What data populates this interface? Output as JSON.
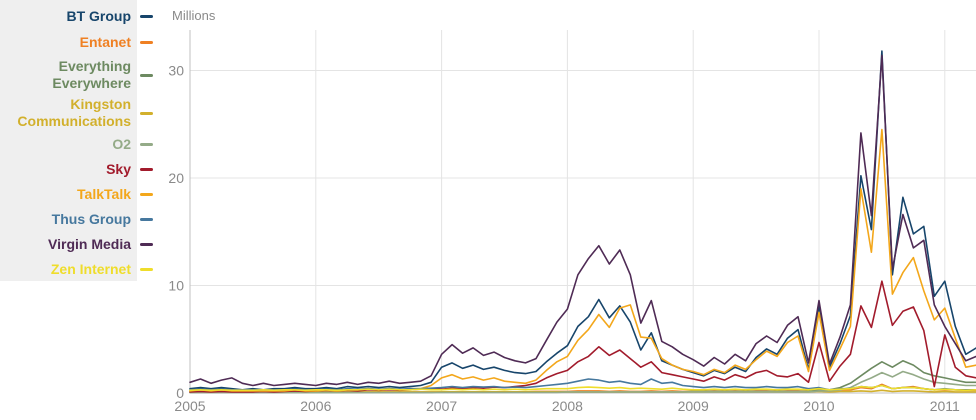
{
  "chart_data": {
    "type": "line",
    "title": "",
    "ylabel": "Millions",
    "xlabel": "",
    "x_unit": "year",
    "x_start": 2005,
    "x_step": 0.08333,
    "x_ticks": [
      2005,
      2006,
      2007,
      2008,
      2009,
      2010,
      2011
    ],
    "y_ticks": [
      0,
      10,
      20,
      30
    ],
    "xlim": [
      2005,
      2011.3
    ],
    "ylim": [
      0,
      33.7
    ],
    "grid": true,
    "legend_position": "left",
    "colors": {
      "grid": "#e4e4e4",
      "axis": "#c0c0c0",
      "tick_label": "#8a8a8a",
      "legend_bg": "#efefef",
      "background": "#ffffff"
    },
    "series": [
      {
        "name": "BT Group",
        "color": "#17456b",
        "values": [
          0.4,
          0.5,
          0.4,
          0.5,
          0.4,
          0.3,
          0.4,
          0.3,
          0.4,
          0.4,
          0.5,
          0.4,
          0.4,
          0.5,
          0.4,
          0.6,
          0.5,
          0.6,
          0.5,
          0.6,
          0.5,
          0.6,
          0.7,
          1.0,
          2.4,
          2.8,
          2.3,
          2.6,
          2.2,
          2.4,
          2.1,
          1.9,
          1.8,
          2.0,
          2.9,
          3.7,
          4.4,
          6.2,
          7.1,
          8.7,
          7.0,
          8.1,
          6.6,
          4.0,
          5.6,
          3.0,
          2.6,
          2.2,
          1.9,
          1.6,
          2.1,
          1.8,
          2.4,
          2.0,
          3.3,
          4.1,
          3.6,
          5.1,
          5.9,
          2.2,
          8.1,
          2.4,
          4.6,
          7.2,
          20.2,
          15.2,
          31.8,
          11.0,
          18.2,
          14.8,
          15.5,
          9.0,
          10.4,
          6.2,
          3.6,
          4.2
        ]
      },
      {
        "name": "Entanet",
        "color": "#ef8023",
        "values": [
          0.1,
          0.1,
          0.1,
          0.1,
          0.1,
          0.1,
          0.1,
          0.1,
          0.1,
          0.1,
          0.1,
          0.1,
          0.1,
          0.1,
          0.1,
          0.1,
          0.1,
          0.1,
          0.1,
          0.1,
          0.1,
          0.1,
          0.1,
          0.1,
          0.1,
          0.1,
          0.1,
          0.1,
          0.1,
          0.1,
          0.1,
          0.1,
          0.1,
          0.15,
          0.15,
          0.15,
          0.15,
          0.2,
          0.2,
          0.2,
          0.15,
          0.2,
          0.15,
          0.15,
          0.2,
          0.15,
          0.2,
          0.15,
          0.15,
          0.15,
          0.2,
          0.15,
          0.2,
          0.15,
          0.2,
          0.2,
          0.15,
          0.2,
          0.2,
          0.15,
          0.2,
          0.2,
          0.3,
          0.3,
          0.5,
          0.4,
          0.8,
          0.4,
          0.5,
          0.6,
          0.4,
          0.3,
          0.3,
          0.3,
          0.25,
          0.25
        ]
      },
      {
        "name": "Everything Everywhere",
        "color": "#6d8a61",
        "values": [
          0.05,
          0.05,
          0.05,
          0.05,
          0.05,
          0.05,
          0.05,
          0.05,
          0.05,
          0.05,
          0.05,
          0.05,
          0.05,
          0.05,
          0.05,
          0.05,
          0.05,
          0.05,
          0.05,
          0.05,
          0.05,
          0.05,
          0.05,
          0.05,
          0.1,
          0.1,
          0.1,
          0.1,
          0.1,
          0.1,
          0.1,
          0.1,
          0.1,
          0.1,
          0.1,
          0.1,
          0.1,
          0.1,
          0.1,
          0.1,
          0.1,
          0.1,
          0.1,
          0.1,
          0.1,
          0.1,
          0.1,
          0.1,
          0.15,
          0.15,
          0.15,
          0.15,
          0.15,
          0.15,
          0.15,
          0.15,
          0.15,
          0.15,
          0.15,
          0.15,
          0.3,
          0.3,
          0.5,
          0.9,
          1.6,
          2.3,
          2.9,
          2.4,
          3.0,
          2.6,
          1.9,
          1.6,
          1.4,
          1.2,
          1.0,
          1.0
        ]
      },
      {
        "name": "Kingston Communications",
        "color": "#d2b02c",
        "values": [
          0.1,
          0.1,
          0.1,
          0.1,
          0.1,
          0.1,
          0.1,
          0.1,
          0.1,
          0.1,
          0.1,
          0.1,
          0.1,
          0.1,
          0.1,
          0.1,
          0.1,
          0.1,
          0.1,
          0.1,
          0.1,
          0.1,
          0.1,
          0.1,
          0.1,
          0.1,
          0.1,
          0.1,
          0.1,
          0.1,
          0.1,
          0.1,
          0.1,
          0.1,
          0.1,
          0.1,
          0.1,
          0.1,
          0.1,
          0.1,
          0.1,
          0.1,
          0.1,
          0.1,
          0.1,
          0.1,
          0.1,
          0.1,
          0.1,
          0.1,
          0.1,
          0.1,
          0.1,
          0.1,
          0.1,
          0.1,
          0.1,
          0.1,
          0.1,
          0.1,
          0.15,
          0.1,
          0.15,
          0.15,
          0.2,
          0.15,
          0.25,
          0.15,
          0.2,
          0.2,
          0.15,
          0.1,
          0.15,
          0.1,
          0.1,
          0.1
        ]
      },
      {
        "name": "O2",
        "color": "#94ab88",
        "values": [
          0.05,
          0.05,
          0.05,
          0.05,
          0.05,
          0.05,
          0.05,
          0.05,
          0.05,
          0.05,
          0.05,
          0.05,
          0.05,
          0.05,
          0.05,
          0.05,
          0.05,
          0.05,
          0.05,
          0.05,
          0.05,
          0.05,
          0.05,
          0.05,
          0.05,
          0.05,
          0.05,
          0.05,
          0.05,
          0.05,
          0.05,
          0.05,
          0.05,
          0.05,
          0.05,
          0.05,
          0.1,
          0.1,
          0.1,
          0.1,
          0.1,
          0.1,
          0.1,
          0.1,
          0.1,
          0.1,
          0.1,
          0.1,
          0.1,
          0.1,
          0.1,
          0.1,
          0.1,
          0.1,
          0.1,
          0.1,
          0.1,
          0.1,
          0.1,
          0.1,
          0.2,
          0.2,
          0.3,
          0.5,
          1.0,
          1.4,
          1.9,
          1.5,
          2.0,
          1.7,
          1.3,
          1.0,
          0.9,
          0.8,
          0.7,
          0.7
        ]
      },
      {
        "name": "Sky",
        "color": "#a21b2c",
        "values": [
          0.1,
          0.15,
          0.1,
          0.15,
          0.1,
          0.1,
          0.1,
          0.15,
          0.1,
          0.15,
          0.2,
          0.15,
          0.2,
          0.25,
          0.2,
          0.25,
          0.2,
          0.3,
          0.25,
          0.3,
          0.25,
          0.3,
          0.35,
          0.4,
          0.35,
          0.45,
          0.4,
          0.5,
          0.45,
          0.55,
          0.5,
          0.6,
          0.7,
          0.9,
          1.4,
          1.8,
          2.1,
          2.9,
          3.4,
          4.3,
          3.5,
          4.0,
          3.2,
          2.4,
          2.9,
          1.9,
          1.7,
          1.5,
          1.3,
          1.1,
          1.5,
          1.2,
          1.7,
          1.4,
          1.9,
          2.1,
          1.6,
          1.5,
          1.8,
          1.0,
          4.7,
          1.1,
          2.5,
          3.6,
          8.1,
          6.1,
          10.4,
          6.3,
          7.6,
          8.0,
          5.8,
          0.6,
          5.4,
          2.4,
          1.6,
          1.4
        ]
      },
      {
        "name": "TalkTalk",
        "color": "#f3a71b",
        "values": [
          0.2,
          0.3,
          0.2,
          0.3,
          0.2,
          0.2,
          0.2,
          0.2,
          0.2,
          0.2,
          0.3,
          0.2,
          0.2,
          0.3,
          0.2,
          0.3,
          0.3,
          0.4,
          0.3,
          0.4,
          0.3,
          0.4,
          0.4,
          0.7,
          1.4,
          1.7,
          1.3,
          1.5,
          1.2,
          1.4,
          1.1,
          1.0,
          0.9,
          1.2,
          2.1,
          2.9,
          3.4,
          4.9,
          5.9,
          7.3,
          6.1,
          7.9,
          8.2,
          5.2,
          5.1,
          3.2,
          2.6,
          2.2,
          2.0,
          1.7,
          2.2,
          1.9,
          2.6,
          2.2,
          3.1,
          3.9,
          3.4,
          4.7,
          5.3,
          2.0,
          7.5,
          2.1,
          4.1,
          6.2,
          19.0,
          13.1,
          24.5,
          9.2,
          11.2,
          12.6,
          9.5,
          6.8,
          7.9,
          5.1,
          2.4,
          2.6
        ]
      },
      {
        "name": "Thus Group",
        "color": "#46789e",
        "values": [
          0.3,
          0.35,
          0.3,
          0.35,
          0.3,
          0.3,
          0.3,
          0.3,
          0.3,
          0.3,
          0.35,
          0.3,
          0.3,
          0.35,
          0.3,
          0.4,
          0.35,
          0.4,
          0.35,
          0.4,
          0.35,
          0.4,
          0.4,
          0.45,
          0.5,
          0.6,
          0.5,
          0.6,
          0.55,
          0.6,
          0.5,
          0.55,
          0.5,
          0.6,
          0.7,
          0.8,
          0.9,
          1.1,
          1.3,
          1.2,
          1.0,
          1.1,
          0.9,
          0.8,
          1.3,
          0.9,
          1.0,
          0.7,
          0.6,
          0.5,
          0.6,
          0.5,
          0.6,
          0.5,
          0.5,
          0.6,
          0.5,
          0.5,
          0.6,
          0.4,
          0.5,
          0.3,
          0.4,
          0.4,
          0.6,
          0.5,
          0.7,
          0.4,
          0.5,
          0.5,
          0.4,
          0.3,
          0.4,
          0.3,
          0.3,
          0.3
        ]
      },
      {
        "name": "Virgin Media",
        "color": "#4f2b55",
        "values": [
          1.0,
          1.3,
          0.9,
          1.2,
          1.4,
          0.9,
          0.7,
          0.9,
          0.7,
          0.8,
          0.9,
          0.8,
          0.7,
          0.9,
          0.8,
          1.0,
          0.8,
          1.0,
          0.9,
          1.1,
          0.9,
          1.0,
          1.1,
          1.6,
          3.6,
          4.5,
          3.7,
          4.2,
          3.5,
          3.8,
          3.3,
          3.0,
          2.8,
          3.2,
          4.9,
          6.6,
          7.8,
          11.0,
          12.5,
          13.7,
          12.0,
          13.3,
          11.0,
          6.5,
          8.6,
          4.8,
          4.3,
          3.6,
          3.1,
          2.5,
          3.3,
          2.7,
          3.6,
          3.0,
          4.6,
          5.3,
          4.7,
          6.3,
          7.1,
          2.8,
          8.6,
          2.7,
          5.2,
          8.2,
          24.2,
          16.5,
          31.4,
          11.5,
          16.6,
          13.5,
          14.2,
          8.2,
          6.2,
          4.6,
          3.0,
          3.4
        ]
      },
      {
        "name": "Zen Internet",
        "color": "#efdd2b",
        "values": [
          0.25,
          0.3,
          0.25,
          0.3,
          0.25,
          0.25,
          0.25,
          0.3,
          0.25,
          0.3,
          0.3,
          0.25,
          0.3,
          0.3,
          0.25,
          0.3,
          0.3,
          0.35,
          0.3,
          0.35,
          0.3,
          0.3,
          0.35,
          0.3,
          0.3,
          0.35,
          0.3,
          0.35,
          0.3,
          0.35,
          0.3,
          0.35,
          0.3,
          0.35,
          0.4,
          0.4,
          0.4,
          0.5,
          0.55,
          0.5,
          0.45,
          0.5,
          0.4,
          0.45,
          0.4,
          0.35,
          0.45,
          0.35,
          0.3,
          0.3,
          0.35,
          0.3,
          0.35,
          0.3,
          0.35,
          0.35,
          0.3,
          0.35,
          0.35,
          0.3,
          0.4,
          0.3,
          0.35,
          0.4,
          0.6,
          0.5,
          0.7,
          0.4,
          0.5,
          0.5,
          0.4,
          0.3,
          0.35,
          0.3,
          0.25,
          0.3
        ]
      }
    ]
  }
}
